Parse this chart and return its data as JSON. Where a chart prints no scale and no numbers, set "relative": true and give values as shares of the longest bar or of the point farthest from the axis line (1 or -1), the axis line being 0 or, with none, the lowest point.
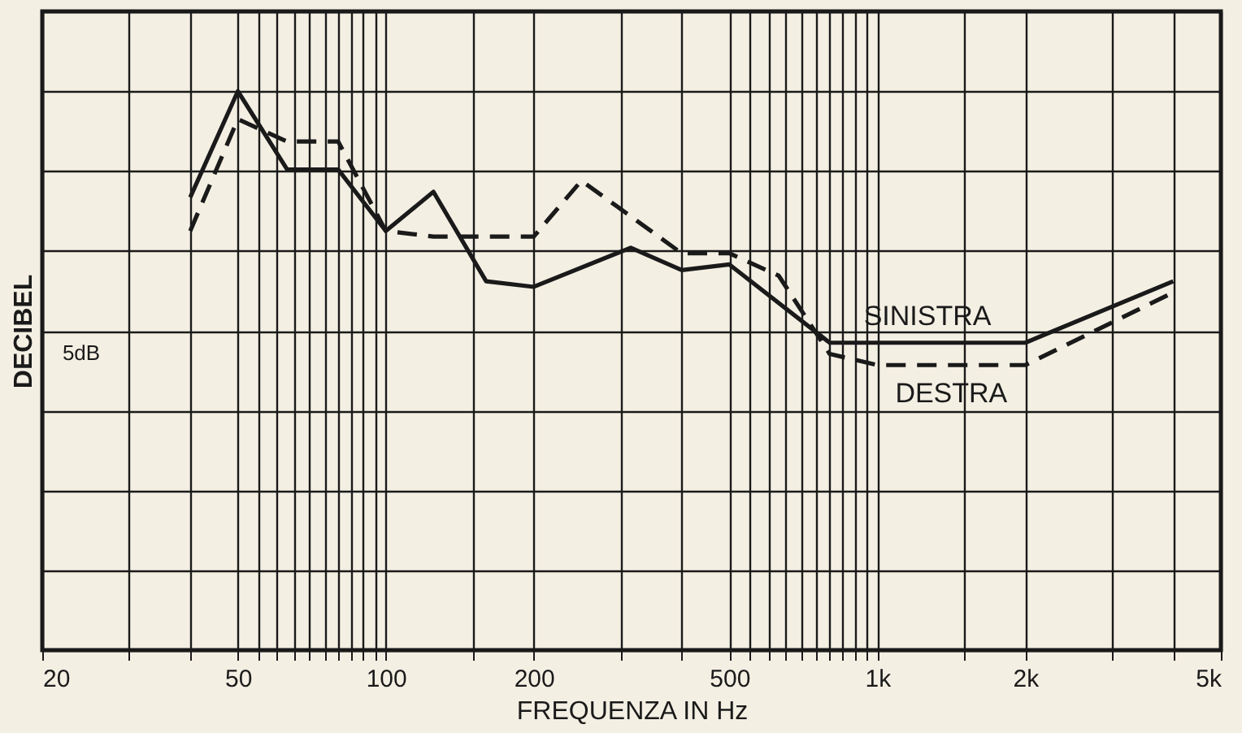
{
  "chart_data": {
    "type": "line",
    "xlabel": "FREQUENZA IN Hz",
    "ylabel": "DECIBEL",
    "relative": true,
    "log": "x",
    "grid": true,
    "legend": false,
    "marker": "none",
    "xlim": [
      20,
      5000
    ],
    "xticks": [
      20,
      {
        "value": 30,
        "label": null
      },
      {
        "value": 40,
        "label": null
      },
      50,
      {
        "value": 55,
        "label": null
      },
      {
        "value": 60,
        "label": null
      },
      {
        "value": 65,
        "label": null
      },
      {
        "value": 70,
        "label": null
      },
      {
        "value": 75,
        "label": null
      },
      {
        "value": 80,
        "label": null
      },
      {
        "value": 85,
        "label": null
      },
      {
        "value": 90,
        "label": null
      },
      {
        "value": 95,
        "label": null
      },
      100,
      {
        "value": 150,
        "label": null
      },
      200,
      {
        "value": 300,
        "label": null
      },
      {
        "value": 400,
        "label": null
      },
      500,
      {
        "value": 550,
        "label": null
      },
      {
        "value": 600,
        "label": null
      },
      {
        "value": 650,
        "label": null
      },
      {
        "value": 700,
        "label": null
      },
      {
        "value": 750,
        "label": null
      },
      {
        "value": 800,
        "label": null
      },
      {
        "value": 850,
        "label": null
      },
      {
        "value": 900,
        "label": null
      },
      {
        "value": 950,
        "label": null
      },
      {
        "value": 1000,
        "label": "1k"
      },
      {
        "value": 1500,
        "label": null
      },
      {
        "value": 2000,
        "label": "2k"
      },
      {
        "value": 3000,
        "label": null
      },
      {
        "value": 4000,
        "label": null
      },
      {
        "value": 5000,
        "label": "5k"
      }
    ],
    "series": [
      {
        "name": "SINISTRA",
        "color": "#1a1a1a",
        "line_style": "solid",
        "x": [
          40,
          50,
          63,
          80,
          100,
          125,
          160,
          200,
          315,
          400,
          500,
          800,
          2000,
          4000
        ],
        "values": [
          0.81,
          1.0,
          0.86,
          0.86,
          0.75,
          0.82,
          0.66,
          0.65,
          0.72,
          0.68,
          0.69,
          0.55,
          0.55,
          0.66
        ]
      },
      {
        "name": "DESTRA",
        "color": "#1a1a1a",
        "line_style": "dashed",
        "x": [
          40,
          50,
          63,
          80,
          100,
          125,
          200,
          250,
          400,
          500,
          630,
          800,
          1000,
          2000,
          4000
        ],
        "values": [
          0.75,
          0.95,
          0.91,
          0.91,
          0.75,
          0.74,
          0.74,
          0.84,
          0.71,
          0.71,
          0.67,
          0.53,
          0.51,
          0.51,
          0.64
        ]
      }
    ],
    "annotations": [
      "5dB"
    ]
  }
}
